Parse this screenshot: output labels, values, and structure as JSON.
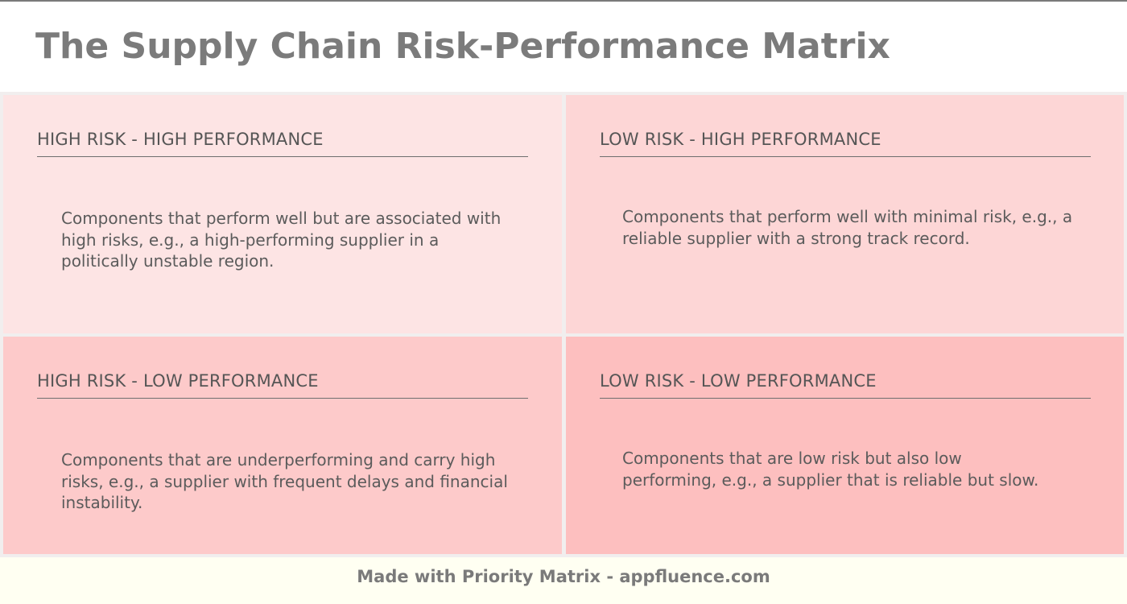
{
  "title": "The Supply Chain Risk-Performance Matrix",
  "quadrants": [
    {
      "heading": "HIGH RISK - HIGH PERFORMANCE",
      "body": "Components that perform well but are associated with high risks, e.g., a high-performing supplier in a politically unstable region."
    },
    {
      "heading": "LOW RISK - HIGH PERFORMANCE",
      "body": "Components that perform well with minimal risk, e.g., a reliable supplier with a strong track record."
    },
    {
      "heading": "HIGH RISK - LOW PERFORMANCE",
      "body": "Components that are underperforming and carry high risks, e.g., a supplier with frequent delays and financial instability."
    },
    {
      "heading": "LOW RISK - LOW PERFORMANCE",
      "body": "Components that are low risk but also low performing, e.g., a supplier that is reliable but slow."
    }
  ],
  "footer": "Made with Priority Matrix - appfluence.com",
  "colors": {
    "quadrant_1": "#fde4e4",
    "quadrant_2": "#fdd6d6",
    "quadrant_3": "#fdcaca",
    "quadrant_4": "#fdbfbf",
    "footer_bg": "#fffff2",
    "title_text": "#7b7b7b"
  }
}
